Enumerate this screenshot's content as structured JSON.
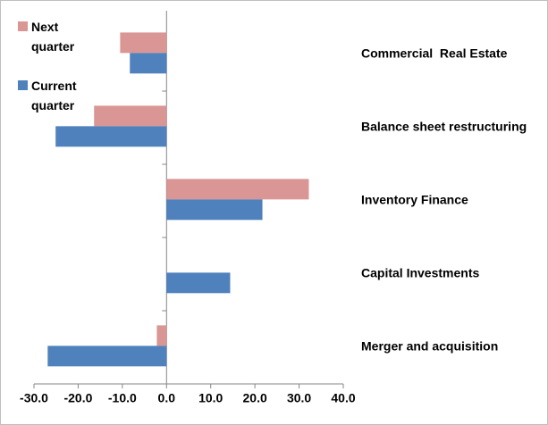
{
  "chart_data": {
    "type": "barh",
    "categories": [
      "Commercial  Real Estate",
      "Balance sheet restructuring",
      "Inventory Finance",
      "Capital Investments",
      "Merger and acquisition"
    ],
    "series": [
      {
        "name": "Next quarter",
        "color": "#d99694",
        "values": [
          -10.5,
          -16.4,
          32.2,
          0,
          -2.2
        ]
      },
      {
        "name": "Current quarter",
        "color": "#4f81bd",
        "values": [
          -8.3,
          -25.1,
          21.7,
          14.4,
          -26.9
        ]
      }
    ],
    "xlim": [
      -30,
      40
    ],
    "xticks": [
      {
        "value": -30,
        "label": "-30.0"
      },
      {
        "value": -20,
        "label": "-20.0"
      },
      {
        "value": -10,
        "label": "-10.0"
      },
      {
        "value": 0,
        "label": "0.0"
      },
      {
        "value": 10,
        "label": "10.0"
      },
      {
        "value": 20,
        "label": "20.0"
      },
      {
        "value": 30,
        "label": "30.0"
      },
      {
        "value": 40,
        "label": "40.0"
      }
    ],
    "legend": "top-left"
  }
}
